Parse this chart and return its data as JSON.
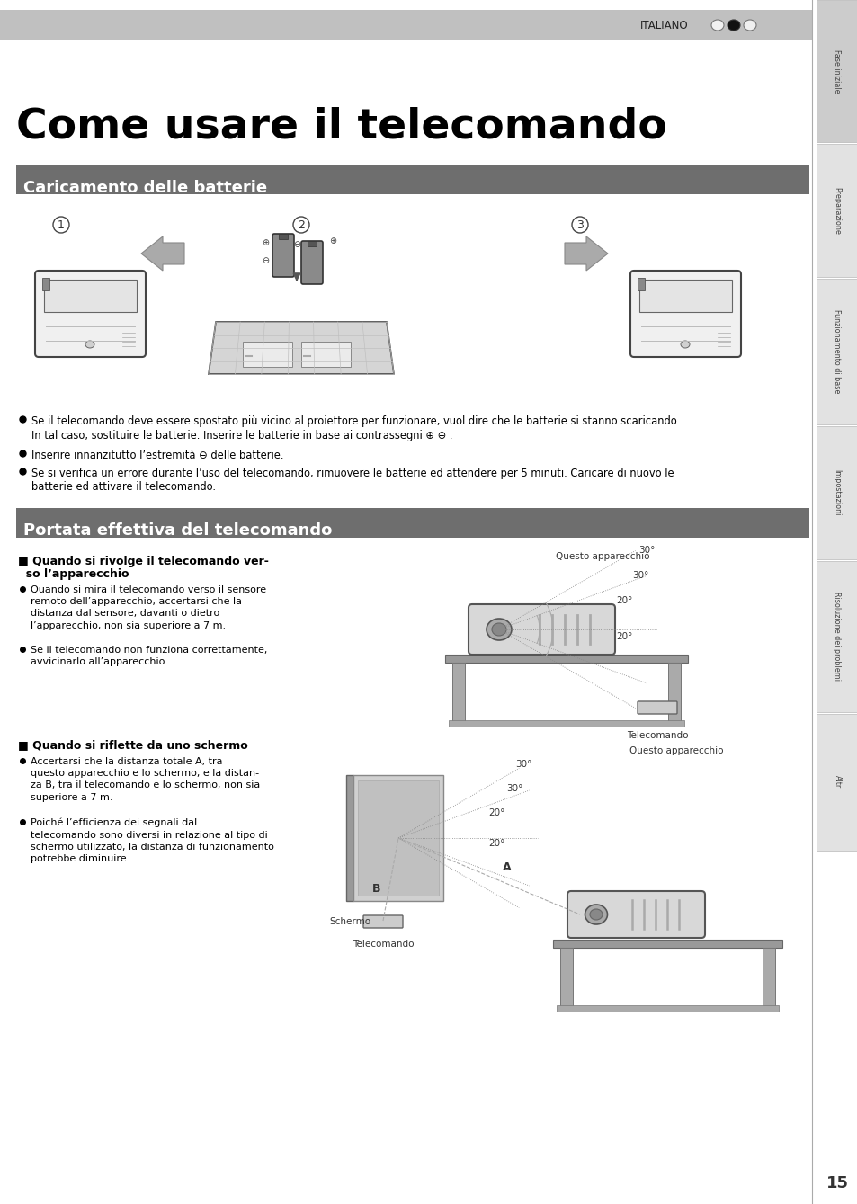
{
  "title": "Come usare il telecomando",
  "section1_title": "Caricamento delle batterie",
  "section2_title": "Portata effettiva del telecomando",
  "section_bg_color": "#6e6e6e",
  "header_bar_color": "#c0c0c0",
  "header_text": "ITALIANO",
  "tab_labels": [
    "Fase iniziale",
    "Preparazione",
    "Funzionamento di base",
    "Impostazioni",
    "Risoluzione dei problemi",
    "Altri"
  ],
  "page_number": "15",
  "bullet1a": "Se il telecomando deve essere spostato più vicino al proiettore per funzionare, vuol dire che le batterie si stanno scaricando.",
  "bullet1b": "In tal caso, sostituire le batterie. Inserire le batterie in base ai contrassegni ⊕ ⊖ .",
  "bullet2": "Inserire innanzitutto l’estremità ⊖ delle batterie.",
  "bullet3a": "Se si verifica un errore durante l’uso del telecomando, rimuovere le batterie ed attendere per 5 minuti. Caricare di nuovo le",
  "bullet3b": "batterie ed attivare il telecomando.",
  "sub1_title_line1": "■ Quando si rivolge il telecomando ver-",
  "sub1_title_line2": "  so l’apparecchio",
  "sub1_b1": "Quando si mira il telecomando verso il sensore\nremoto dell’apparecchio, accertarsi che la\ndistanza dal sensore, davanti o dietro\nl’apparecchio, non sia superiore a 7 m.",
  "sub1_b2": "Se il telecomando non funziona correttamente,\navvicinarlo all’apparecchio.",
  "sub2_title": "■ Quando si riflette da uno schermo",
  "sub2_b1": "Accertarsi che la distanza totale A, tra\nquesto apparecchio e lo schermo, e la distan-\nza B, tra il telecomando e lo schermo, non sia\nsuperiore a 7 m.",
  "sub2_b2": "Poiché l’efficienza dei segnali dal\ntelecomando sono diversi in relazione al tipo di\nschermo utilizzato, la distanza di funzionamento\npotrebbe diminuire.",
  "label_questo": "Questo apparecchio",
  "label_telecomando": "Telecomando",
  "label_schermo": "Schermo",
  "bg_color": "#ffffff"
}
